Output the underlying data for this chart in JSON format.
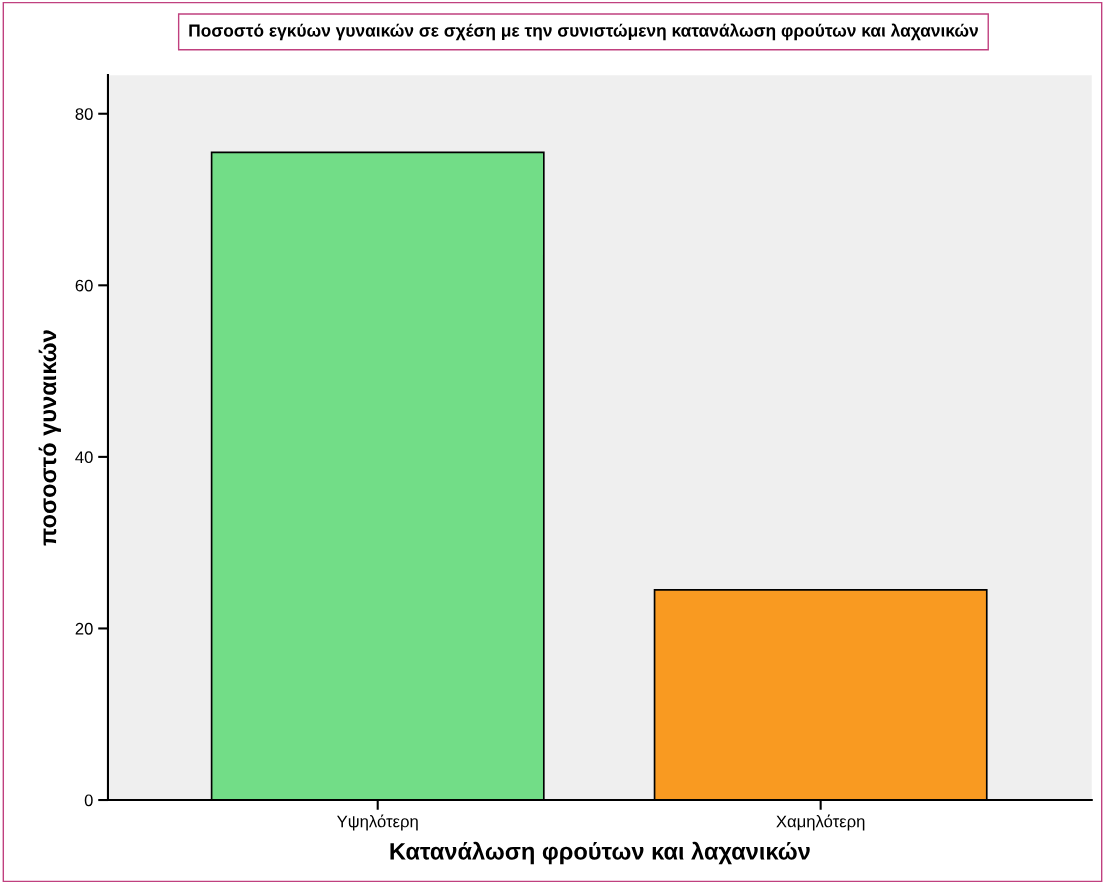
{
  "chart_data": {
    "type": "bar",
    "title": "Ποσοστό εγκύων γυναικών σε σχέση με την συνιστώμενη κατανάλωση φρούτων και λαχανικών",
    "xlabel": "Κατανάλωση φρούτων και λαχανικών",
    "ylabel": "ποσοστό γυναικών",
    "categories": [
      "Υψηλότερη",
      "Χαμηλότερη"
    ],
    "values": [
      75.5,
      24.5
    ],
    "colors": [
      "#72dd87",
      "#f99a21"
    ],
    "ylim": [
      0,
      84.5
    ],
    "yticks": [
      0,
      20,
      40,
      60,
      80
    ],
    "grid": false,
    "legend": false
  }
}
